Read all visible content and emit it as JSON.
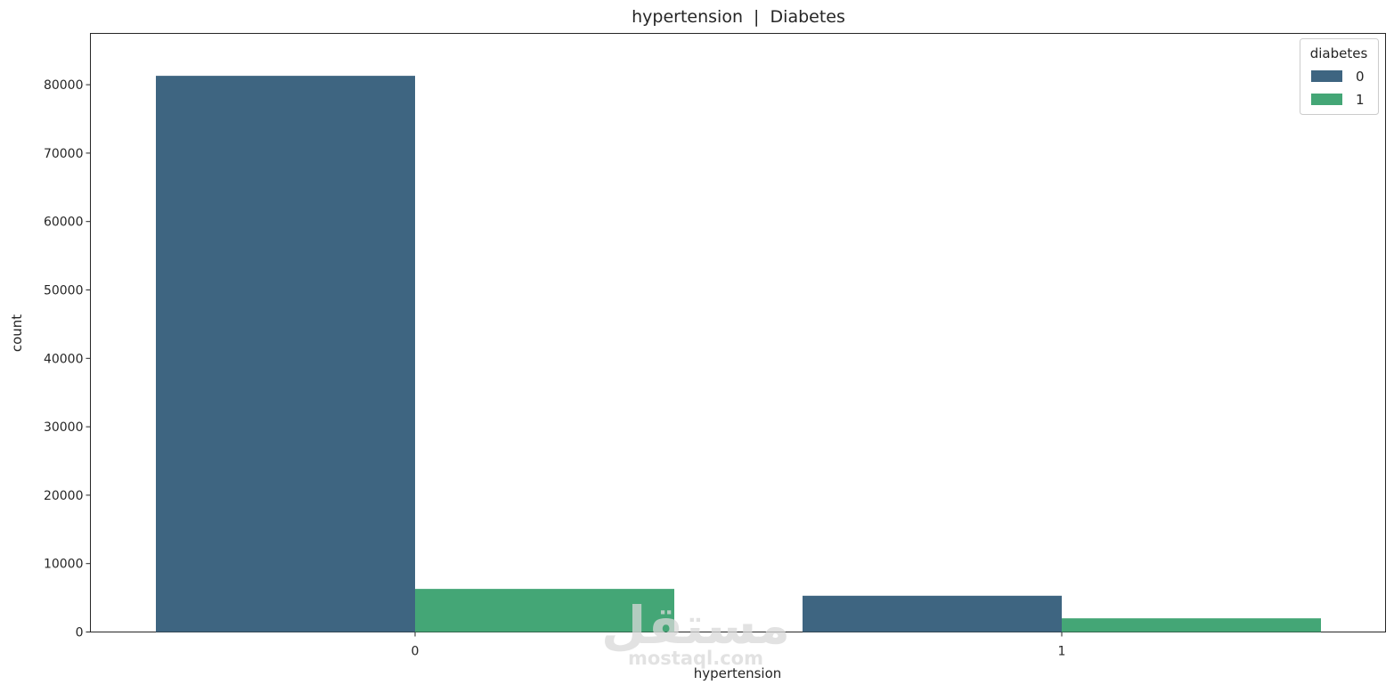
{
  "chart_data": {
    "type": "bar",
    "title": "hypertension  |  Diabetes",
    "xlabel": "hypertension",
    "ylabel": "count",
    "categories": [
      "0",
      "1"
    ],
    "series": [
      {
        "name": "0",
        "values": [
          81300,
          5300
        ],
        "color": "#3e6581"
      },
      {
        "name": "1",
        "values": [
          6300,
          2000
        ],
        "color": "#44a676"
      }
    ],
    "legend": {
      "title": "diabetes",
      "placement": "top-right"
    },
    "ylim": [
      0,
      87500
    ],
    "yticks": [
      0,
      10000,
      20000,
      30000,
      40000,
      50000,
      60000,
      70000,
      80000
    ],
    "ytick_labels": [
      "0",
      "10000",
      "20000",
      "30000",
      "40000",
      "50000",
      "60000",
      "70000",
      "80000"
    ],
    "grid": false
  },
  "watermark": {
    "logo_text": "مستقل",
    "site_text": "mostaql.com"
  }
}
